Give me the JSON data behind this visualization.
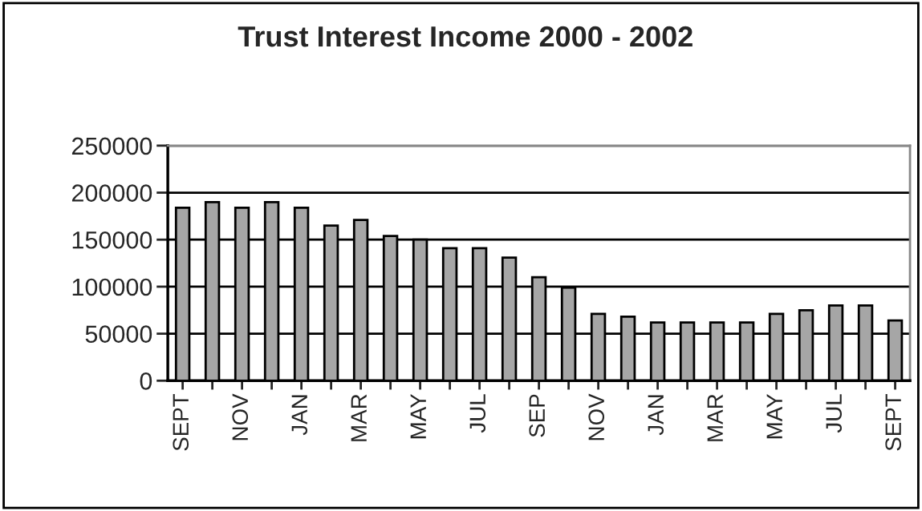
{
  "chart_data": {
    "type": "bar",
    "title": "Trust Interest Income 2000 - 2002",
    "categories": [
      "SEPT",
      null,
      "NOV",
      null,
      "JAN",
      null,
      "MAR",
      null,
      "MAY",
      null,
      "JUL",
      null,
      "SEP",
      null,
      "NOV",
      null,
      "JAN",
      null,
      "MAR",
      null,
      "MAY",
      null,
      "JUL",
      null,
      "SEPT"
    ],
    "values": [
      184000,
      190000,
      184000,
      190000,
      184000,
      165000,
      171000,
      154000,
      150000,
      141000,
      141000,
      131000,
      110000,
      99000,
      71000,
      68000,
      62000,
      62000,
      62000,
      62000,
      71000,
      75000,
      80000,
      80000,
      64000
    ],
    "color": "#a6a6a6",
    "ylim": [
      0,
      250000
    ],
    "yticks": [
      0,
      50000,
      100000,
      150000,
      200000,
      250000
    ],
    "grid": "y"
  }
}
